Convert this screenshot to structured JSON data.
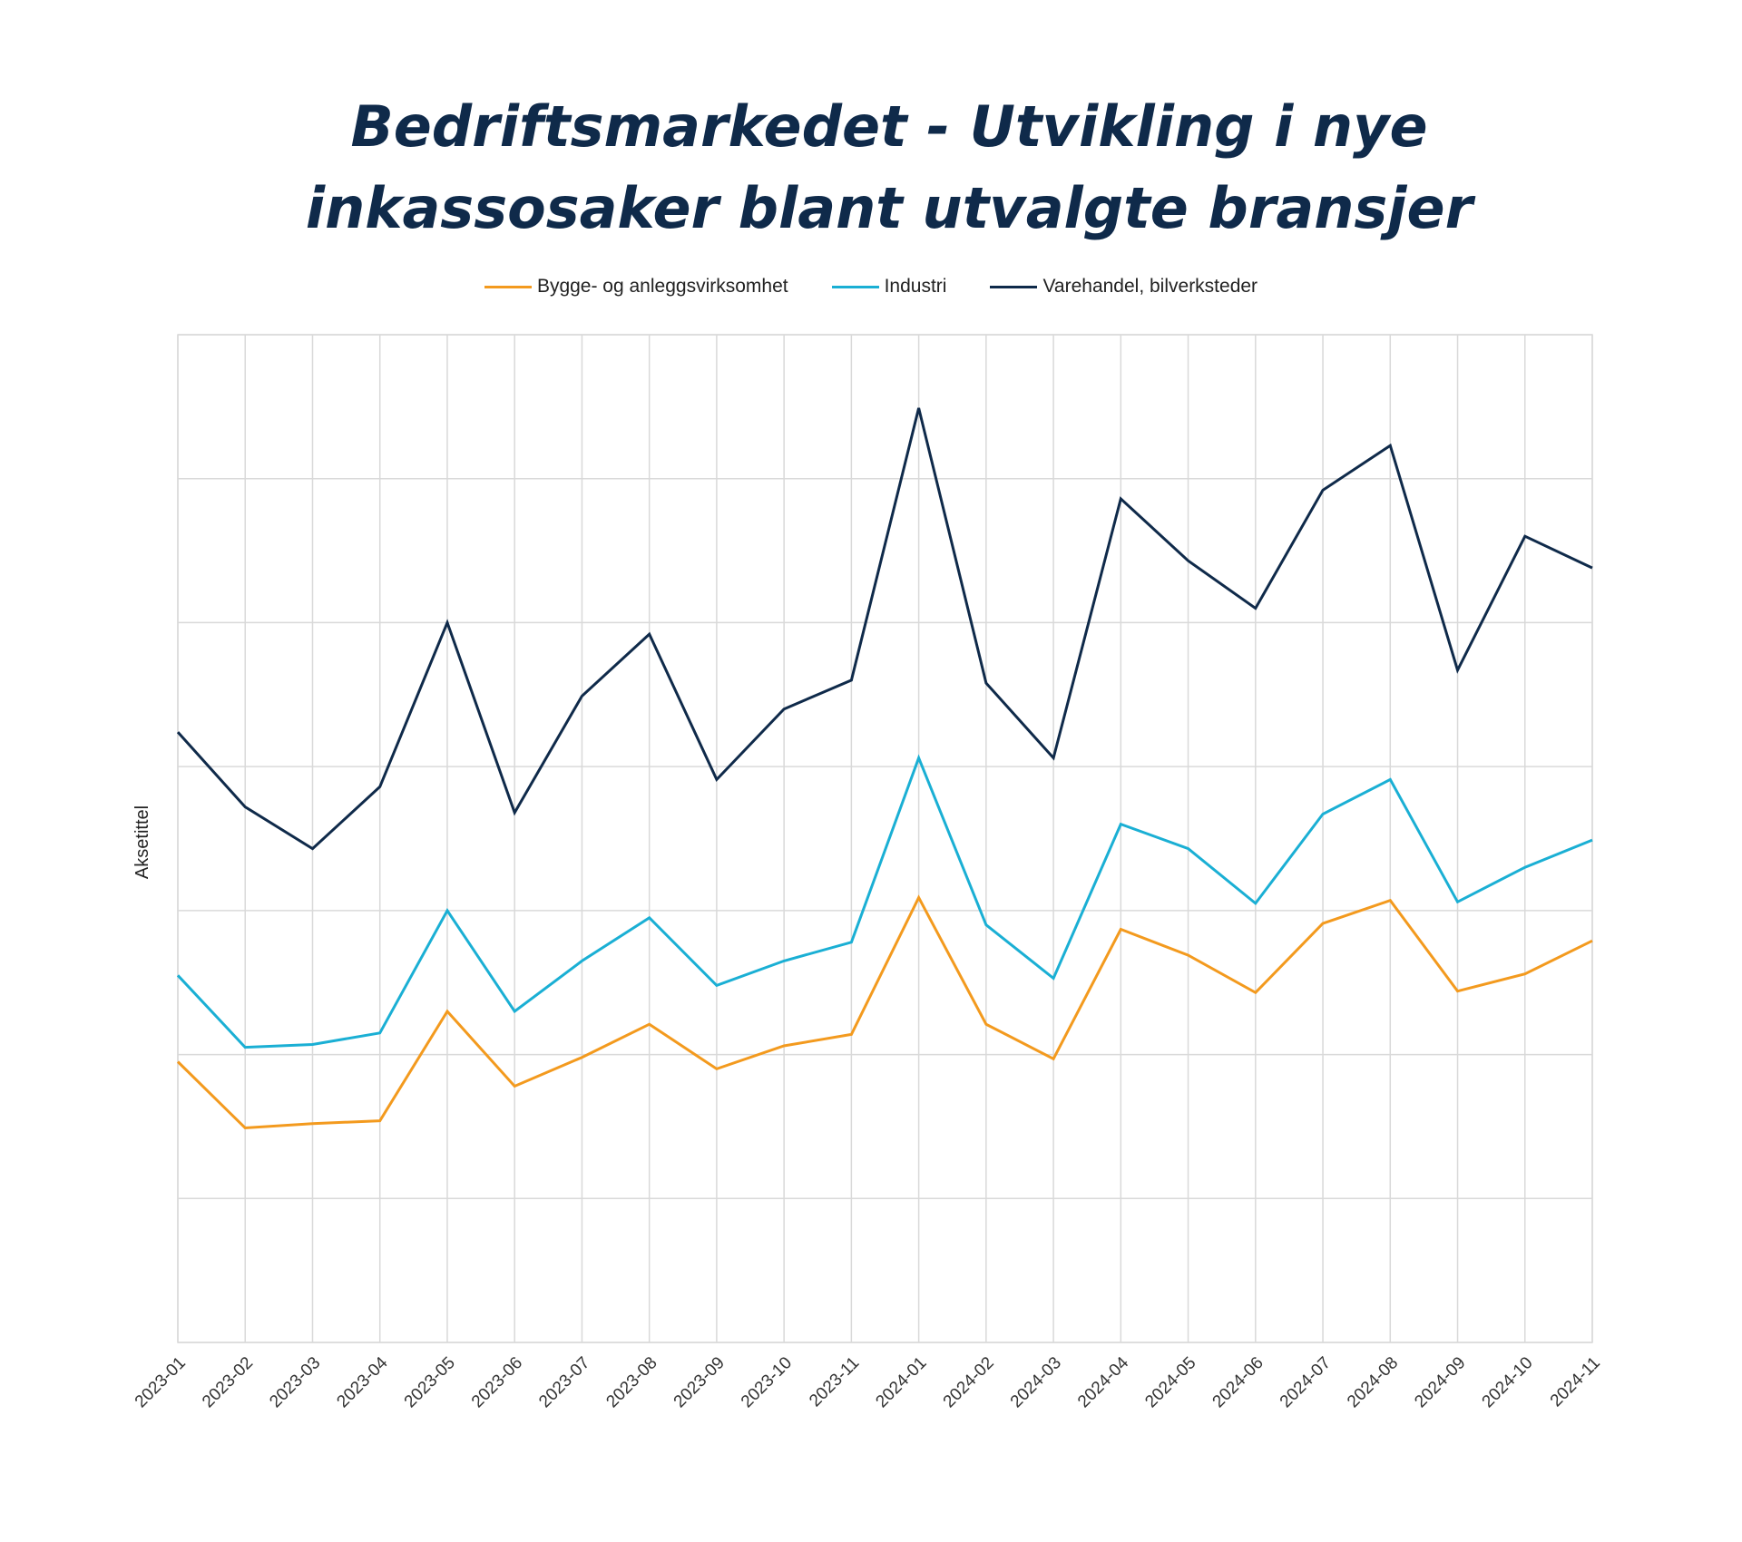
{
  "chart_data": {
    "type": "line",
    "title": "Bedriftsmarkedet - Utvikling i nye inkassosaker blant utvalgte bransjer",
    "title_lines": [
      "Bedriftsmarkedet - Utvikling i nye",
      "inkassosaker blant utvalgte bransjer"
    ],
    "xlabel": "",
    "ylabel": "Aksetittel",
    "ylim": [
      0,
      7
    ],
    "grid": true,
    "legend_position": "top",
    "x": [
      "2023-01",
      "2023-02",
      "2023-03",
      "2023-04",
      "2023-05",
      "2023-06",
      "2023-07",
      "2023-08",
      "2023-09",
      "2023-10",
      "2023-11",
      "2024-01",
      "2024-02",
      "2024-03",
      "2024-04",
      "2024-05",
      "2024-06",
      "2024-07",
      "2024-08",
      "2024-09",
      "2024-10",
      "2024-11"
    ],
    "series": [
      {
        "name": "Bygge- og anleggsvirksomhet",
        "color": "#f39a1e",
        "values": [
          1.95,
          1.49,
          1.52,
          1.54,
          2.3,
          1.78,
          1.98,
          2.21,
          1.9,
          2.06,
          2.14,
          3.09,
          2.21,
          1.97,
          2.87,
          2.69,
          2.43,
          2.91,
          3.07,
          2.44,
          2.56,
          2.79
        ]
      },
      {
        "name": "Industri",
        "color": "#1aafd4",
        "values": [
          2.55,
          2.05,
          2.07,
          2.15,
          3.0,
          2.3,
          2.65,
          2.95,
          2.48,
          2.65,
          2.78,
          4.06,
          2.9,
          2.53,
          3.6,
          3.43,
          3.05,
          3.67,
          3.91,
          3.06,
          3.3,
          3.49
        ]
      },
      {
        "name": "Varehandel, bilverksteder",
        "color": "#0f2a4a",
        "values": [
          4.24,
          3.72,
          3.43,
          3.86,
          5.0,
          3.68,
          4.49,
          4.92,
          3.91,
          4.4,
          4.6,
          6.49,
          4.58,
          4.06,
          5.86,
          5.43,
          5.1,
          5.92,
          6.23,
          4.67,
          5.6,
          5.38
        ]
      }
    ]
  }
}
